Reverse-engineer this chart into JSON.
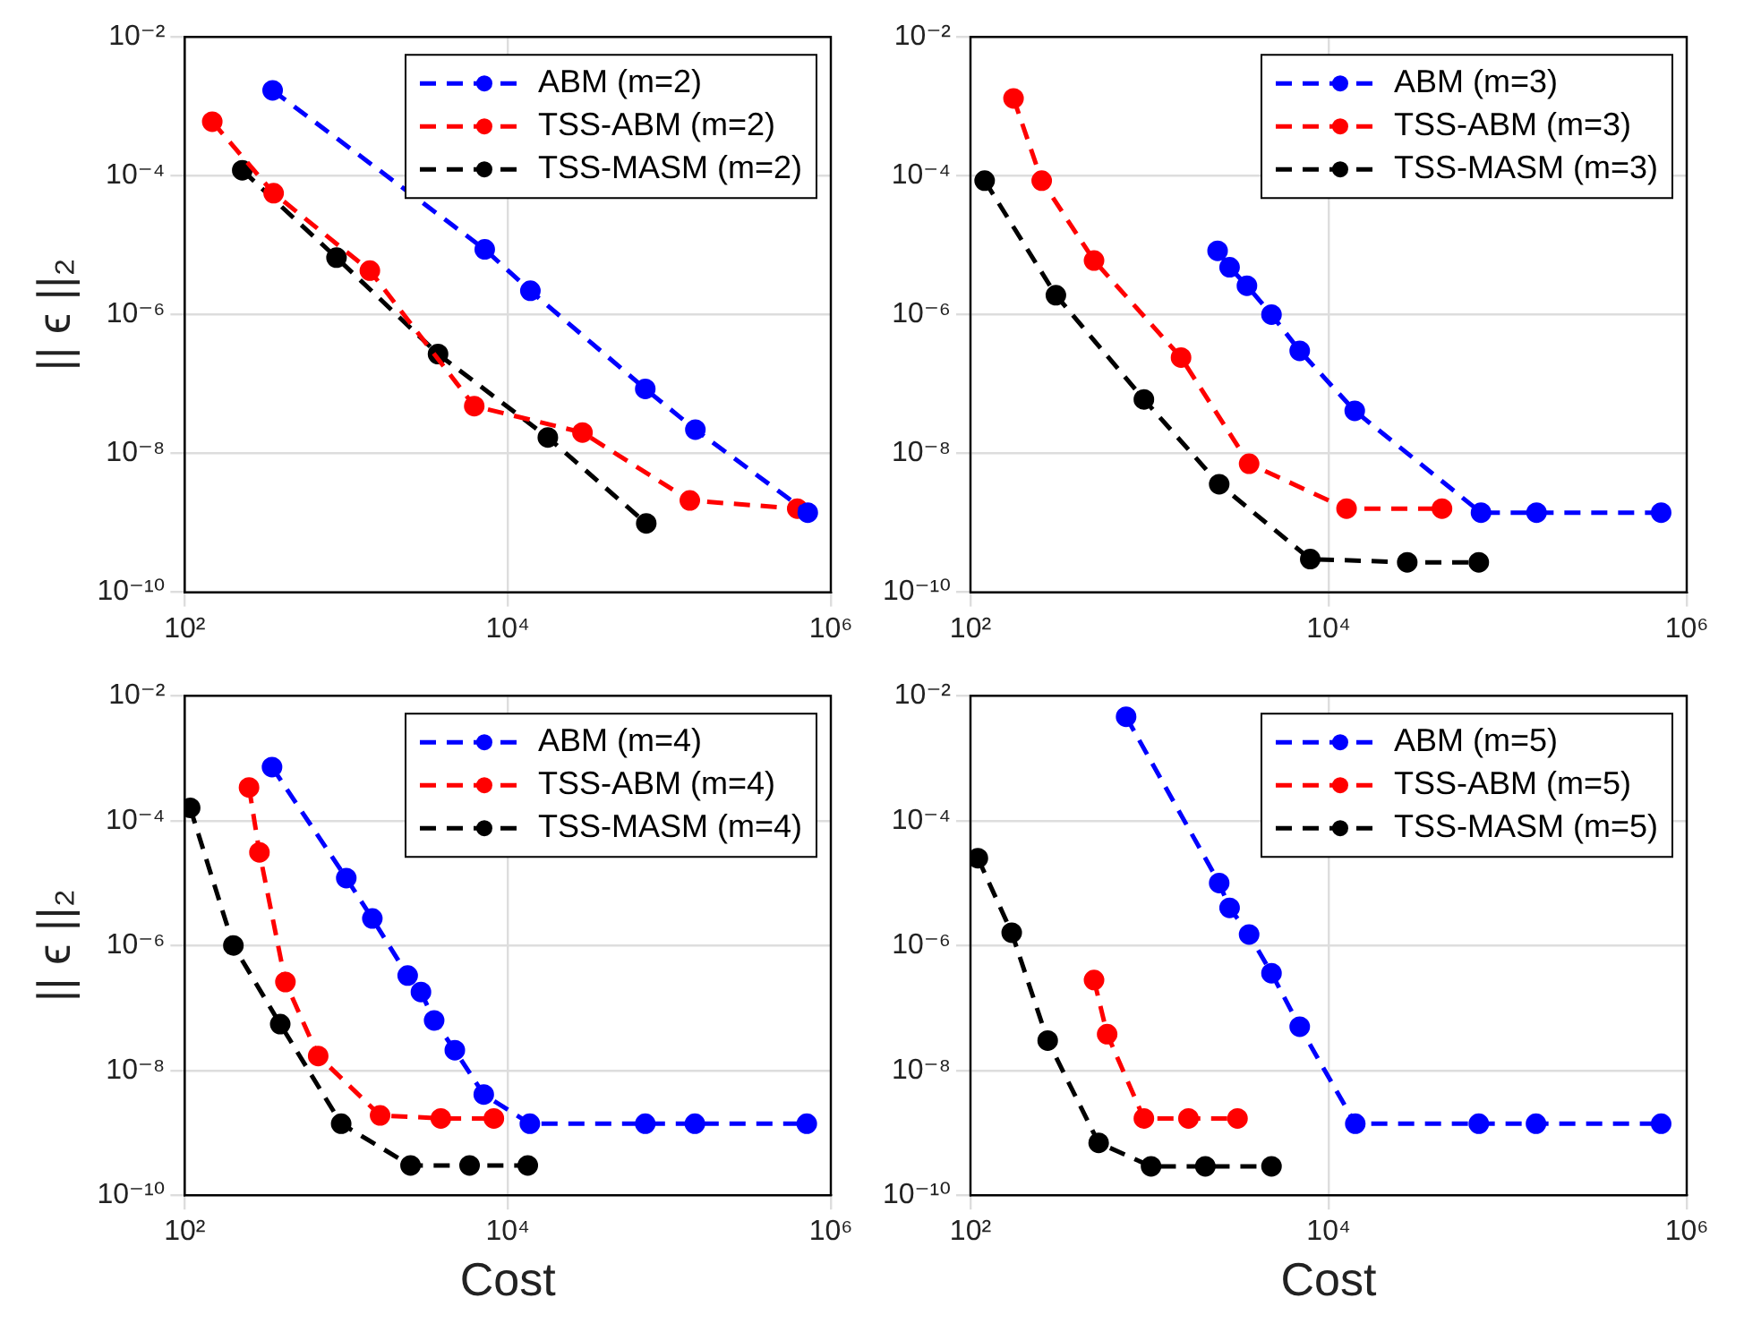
{
  "chart_data": [
    {
      "type": "line",
      "ylabel": "|| ϵ ||₂",
      "log": "xy",
      "grid": true,
      "legend": "top right",
      "marker": "circle",
      "line_style": "dashed",
      "xlim": [
        100,
        1000000
      ],
      "ylim": [
        1e-10,
        0.01
      ],
      "xticks": [
        {
          "value": 100,
          "label": "10²"
        },
        {
          "value": 10000,
          "label": "10⁴"
        },
        {
          "value": 1000000,
          "label": "10⁶"
        }
      ],
      "yticks": [
        {
          "value": 1e-10,
          "label": "10⁻¹⁰"
        },
        {
          "value": 1e-08,
          "label": "10⁻⁸"
        },
        {
          "value": 1e-06,
          "label": "10⁻⁶"
        },
        {
          "value": 0.0001,
          "label": "10⁻⁴"
        },
        {
          "value": 0.01,
          "label": "10⁻²"
        }
      ],
      "series": [
        {
          "name": "ABM (m=2)",
          "color": "#0000ff",
          "x": [
            350,
            7200,
            13800,
            71000,
            145000,
            720000
          ],
          "values": [
            0.0017,
            8.7e-06,
            2.2e-06,
            8.5e-08,
            2.2e-08,
            1.4e-09
          ]
        },
        {
          "name": "TSS-ABM (m=2)",
          "color": "#ff0000",
          "x": [
            148,
            355,
            1400,
            6200,
            29000,
            134000,
            620000
          ],
          "values": [
            0.0006,
            5.6e-05,
            4.3e-06,
            4.8e-08,
            2e-08,
            2.1e-09,
            1.6e-09
          ]
        },
        {
          "name": "TSS-MASM (m=2)",
          "color": "#000000",
          "x": [
            227,
            870,
            3700,
            17700,
            72000
          ],
          "values": [
            0.00012,
            6.6e-06,
            2.7e-07,
            1.7e-08,
            9.8e-10
          ]
        }
      ]
    },
    {
      "type": "line",
      "log": "xy",
      "grid": true,
      "legend": "top right",
      "marker": "circle",
      "line_style": "dashed",
      "xlim": [
        100,
        1000000
      ],
      "ylim": [
        1e-10,
        0.01
      ],
      "xticks": [
        {
          "value": 100,
          "label": "10²"
        },
        {
          "value": 10000,
          "label": "10⁴"
        },
        {
          "value": 1000000,
          "label": "10⁶"
        }
      ],
      "yticks": [
        {
          "value": 1e-10,
          "label": "10⁻¹⁰"
        },
        {
          "value": 1e-08,
          "label": "10⁻⁸"
        },
        {
          "value": 1e-06,
          "label": "10⁻⁶"
        },
        {
          "value": 0.0001,
          "label": "10⁻⁴"
        },
        {
          "value": 0.01,
          "label": "10⁻²"
        }
      ],
      "series": [
        {
          "name": "ABM (m=3)",
          "color": "#0000ff",
          "x": [
            2400,
            2800,
            3500,
            4800,
            6900,
            14000,
            71000,
            145000,
            720000
          ],
          "values": [
            8.3e-06,
            4.8e-06,
            2.6e-06,
            1e-06,
            3e-07,
            4.1e-08,
            1.4e-09,
            1.4e-09,
            1.4e-09
          ]
        },
        {
          "name": "TSS-ABM (m=3)",
          "color": "#ff0000",
          "x": [
            174,
            250,
            490,
            1500,
            3600,
            12600,
            43000
          ],
          "values": [
            0.0013,
            8.5e-05,
            6e-06,
            2.4e-07,
            7.1e-09,
            1.6e-09,
            1.6e-09
          ]
        },
        {
          "name": "TSS-MASM (m=3)",
          "color": "#000000",
          "x": [
            120,
            300,
            930,
            2450,
            7900,
            27500,
            69000
          ],
          "values": [
            8.5e-05,
            1.9e-06,
            6e-08,
            3.6e-09,
            3e-10,
            2.7e-10,
            2.7e-10
          ]
        }
      ]
    },
    {
      "type": "line",
      "xlabel": "Cost",
      "ylabel": "|| ϵ ||₂",
      "log": "xy",
      "grid": true,
      "legend": "top right",
      "marker": "circle",
      "line_style": "dashed",
      "xlim": [
        100,
        1000000
      ],
      "ylim": [
        1e-10,
        0.01
      ],
      "xticks": [
        {
          "value": 100,
          "label": "10²"
        },
        {
          "value": 10000,
          "label": "10⁴"
        },
        {
          "value": 1000000,
          "label": "10⁶"
        }
      ],
      "yticks": [
        {
          "value": 1e-10,
          "label": "10⁻¹⁰"
        },
        {
          "value": 1e-08,
          "label": "10⁻⁸"
        },
        {
          "value": 1e-06,
          "label": "10⁻⁶"
        },
        {
          "value": 0.0001,
          "label": "10⁻⁴"
        },
        {
          "value": 0.01,
          "label": "10⁻²"
        }
      ],
      "series": [
        {
          "name": "ABM (m=4)",
          "color": "#0000ff",
          "x": [
            347,
            1000,
            1450,
            2400,
            2900,
            3500,
            4700,
            7100,
            13700,
            71000,
            144000,
            710000
          ],
          "values": [
            0.00072,
            1.2e-05,
            2.7e-06,
            3.3e-07,
            1.8e-07,
            6.3e-08,
            2.1e-08,
            4.1e-09,
            1.4e-09,
            1.4e-09,
            1.4e-09,
            1.4e-09
          ]
        },
        {
          "name": "TSS-ABM (m=4)",
          "color": "#ff0000",
          "x": [
            250,
            290,
            420,
            670,
            1620,
            3850,
            8200
          ],
          "values": [
            0.00034,
            3.1e-05,
            2.6e-07,
            1.7e-08,
            1.9e-09,
            1.7e-09,
            1.7e-09
          ]
        },
        {
          "name": "TSS-MASM (m=4)",
          "color": "#000000",
          "x": [
            108,
            200,
            390,
            930,
            2500,
            5800,
            13300
          ],
          "values": [
            0.00016,
            1e-06,
            5.5e-08,
            1.4e-09,
            3e-10,
            3e-10,
            3e-10
          ]
        }
      ]
    },
    {
      "type": "line",
      "xlabel": "Cost",
      "log": "xy",
      "grid": true,
      "legend": "top right",
      "marker": "circle",
      "line_style": "dashed",
      "xlim": [
        100,
        1000000
      ],
      "ylim": [
        1e-10,
        0.01
      ],
      "xticks": [
        {
          "value": 100,
          "label": "10²"
        },
        {
          "value": 10000,
          "label": "10⁴"
        },
        {
          "value": 1000000,
          "label": "10⁶"
        }
      ],
      "yticks": [
        {
          "value": 1e-10,
          "label": "10⁻¹⁰"
        },
        {
          "value": 1e-08,
          "label": "10⁻⁸"
        },
        {
          "value": 1e-06,
          "label": "10⁻⁶"
        },
        {
          "value": 0.0001,
          "label": "10⁻⁴"
        },
        {
          "value": 0.01,
          "label": "10⁻²"
        }
      ],
      "series": [
        {
          "name": "ABM (m=5)",
          "color": "#0000ff",
          "x": [
            740,
            2450,
            2800,
            3600,
            4800,
            6900,
            14100,
            69000,
            144000,
            720000
          ],
          "values": [
            0.0046,
            1e-05,
            4e-06,
            1.5e-06,
            3.6e-07,
            5e-08,
            1.4e-09,
            1.4e-09,
            1.4e-09,
            1.4e-09
          ]
        },
        {
          "name": "TSS-ABM (m=5)",
          "color": "#ff0000",
          "x": [
            490,
            580,
            930,
            1650,
            3100
          ],
          "values": [
            2.8e-07,
            3.8e-08,
            1.7e-09,
            1.7e-09,
            1.7e-09
          ]
        },
        {
          "name": "TSS-MASM (m=5)",
          "color": "#000000",
          "x": [
            110,
            170,
            270,
            520,
            1020,
            2050,
            4800
          ],
          "values": [
            2.5e-05,
            1.6e-06,
            3e-08,
            6.9e-10,
            2.9e-10,
            2.9e-10,
            2.9e-10
          ]
        }
      ]
    }
  ]
}
